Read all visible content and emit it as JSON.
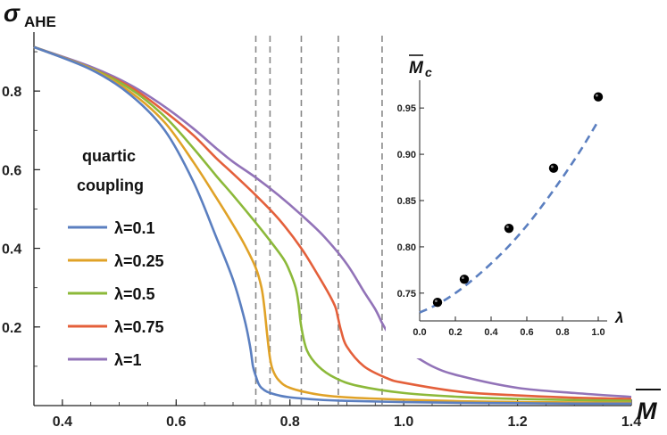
{
  "chart_data": [
    {
      "type": "line",
      "title": "",
      "ylabel_symbol": "σ",
      "ylabel_sub": "AHE",
      "xlabel": "M",
      "xlim": [
        0.35,
        1.4
      ],
      "ylim": [
        0,
        0.95
      ],
      "xticks": [
        "0.4",
        "0.6",
        "0.8",
        "1.0",
        "1.2",
        "1.4"
      ],
      "yticks": [
        "0.2",
        "0.4",
        "0.6",
        "0.8"
      ],
      "legend_title": [
        "quartic",
        "coupling"
      ],
      "critical_lines": [
        0.74,
        0.765,
        0.82,
        0.885,
        0.962
      ],
      "series": [
        {
          "name": "λ=0.1",
          "color": "#5b7fc0",
          "x": [
            0.35,
            0.45,
            0.52,
            0.58,
            0.63,
            0.67,
            0.7,
            0.72,
            0.73,
            0.735,
            0.74,
            0.745,
            0.75,
            0.76,
            0.78,
            0.8,
            0.85,
            0.9,
            1.0,
            1.1,
            1.2,
            1.3,
            1.4
          ],
          "y": [
            0.912,
            0.855,
            0.79,
            0.7,
            0.57,
            0.43,
            0.32,
            0.22,
            0.15,
            0.1,
            0.075,
            0.055,
            0.045,
            0.035,
            0.026,
            0.021,
            0.015,
            0.012,
            0.009,
            0.007,
            0.006,
            0.005,
            0.005
          ]
        },
        {
          "name": "λ=0.25",
          "color": "#e0a227",
          "x": [
            0.35,
            0.45,
            0.52,
            0.58,
            0.63,
            0.67,
            0.7,
            0.72,
            0.74,
            0.75,
            0.755,
            0.76,
            0.765,
            0.77,
            0.78,
            0.8,
            0.85,
            0.9,
            1.0,
            1.1,
            1.2,
            1.3,
            1.4
          ],
          "y": [
            0.912,
            0.857,
            0.797,
            0.72,
            0.62,
            0.53,
            0.46,
            0.41,
            0.35,
            0.3,
            0.25,
            0.18,
            0.12,
            0.09,
            0.065,
            0.045,
            0.028,
            0.021,
            0.015,
            0.011,
            0.009,
            0.008,
            0.007
          ]
        },
        {
          "name": "λ=0.5",
          "color": "#8cb93a",
          "x": [
            0.35,
            0.45,
            0.52,
            0.58,
            0.63,
            0.67,
            0.7,
            0.74,
            0.77,
            0.79,
            0.8,
            0.81,
            0.815,
            0.82,
            0.83,
            0.85,
            0.88,
            0.92,
            1.0,
            1.1,
            1.2,
            1.3,
            1.4
          ],
          "y": [
            0.912,
            0.858,
            0.805,
            0.735,
            0.655,
            0.585,
            0.535,
            0.465,
            0.41,
            0.37,
            0.34,
            0.3,
            0.26,
            0.2,
            0.14,
            0.1,
            0.07,
            0.05,
            0.032,
            0.022,
            0.017,
            0.014,
            0.012
          ]
        },
        {
          "name": "λ=0.75",
          "color": "#e4603b",
          "x": [
            0.35,
            0.45,
            0.52,
            0.58,
            0.63,
            0.67,
            0.7,
            0.74,
            0.78,
            0.82,
            0.85,
            0.87,
            0.88,
            0.885,
            0.89,
            0.9,
            0.93,
            0.97,
            1.0,
            1.1,
            1.2,
            1.3,
            1.4
          ],
          "y": [
            0.912,
            0.858,
            0.81,
            0.748,
            0.688,
            0.63,
            0.59,
            0.535,
            0.475,
            0.4,
            0.33,
            0.28,
            0.25,
            0.22,
            0.19,
            0.15,
            0.1,
            0.07,
            0.058,
            0.035,
            0.026,
            0.02,
            0.017
          ]
        },
        {
          "name": "λ=1",
          "color": "#9273b8",
          "x": [
            0.35,
            0.45,
            0.52,
            0.58,
            0.63,
            0.67,
            0.7,
            0.74,
            0.78,
            0.82,
            0.86,
            0.9,
            0.93,
            0.95,
            0.962,
            0.97,
            0.98,
            1.0,
            1.05,
            1.1,
            1.2,
            1.3,
            1.4
          ],
          "y": [
            0.912,
            0.862,
            0.815,
            0.76,
            0.705,
            0.655,
            0.62,
            0.58,
            0.535,
            0.485,
            0.43,
            0.36,
            0.29,
            0.245,
            0.21,
            0.19,
            0.17,
            0.145,
            0.1,
            0.075,
            0.045,
            0.032,
            0.022
          ]
        }
      ]
    },
    {
      "type": "scatter",
      "title": "",
      "ylabel": "M̅c",
      "ylabel_main": "M",
      "ylabel_sub": "c",
      "xlabel": "λ",
      "xlim": [
        0,
        1.0
      ],
      "ylim": [
        0.72,
        0.98
      ],
      "xticks": [
        "0.0",
        "0.2",
        "0.4",
        "0.6",
        "0.8",
        "1.0"
      ],
      "yticks": [
        "0.75",
        "0.80",
        "0.85",
        "0.90",
        "0.95"
      ],
      "points": {
        "x": [
          0.1,
          0.25,
          0.5,
          0.75,
          1.0
        ],
        "y": [
          0.74,
          0.765,
          0.82,
          0.885,
          0.962
        ]
      },
      "fit": {
        "style": "dashed",
        "color": "#5b7fc0",
        "x": [
          0.0,
          0.1,
          0.2,
          0.3,
          0.4,
          0.5,
          0.6,
          0.7,
          0.8,
          0.9,
          1.0
        ],
        "y": [
          0.729,
          0.738,
          0.75,
          0.765,
          0.782,
          0.801,
          0.823,
          0.848,
          0.875,
          0.904,
          0.936
        ]
      }
    }
  ]
}
